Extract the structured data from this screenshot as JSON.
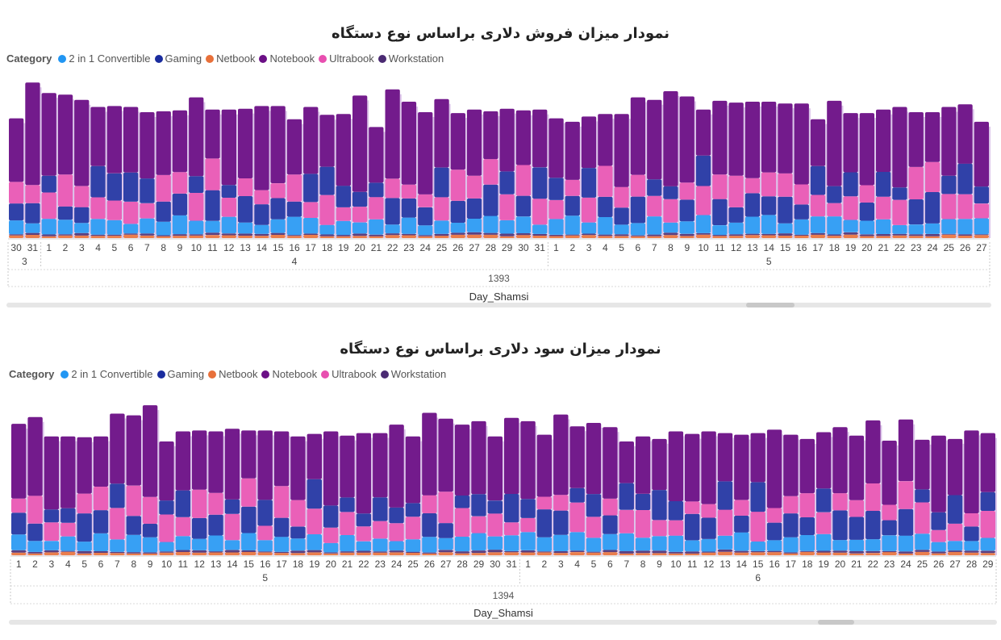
{
  "legend_colors": {
    "2 in 1 Convertible": "#2196f3",
    "Gaming": "#1a2c9e",
    "Netbook": "#e8703a",
    "Notebook": "#6b0f86",
    "Ultrabook": "#e84fb0",
    "Workstation": "#4a2a72"
  },
  "chart_data": [
    {
      "type": "area",
      "subtype": "ribbon",
      "title": "نمودار میزان فروش دلاری براساس نوع دستگاه",
      "legend_title": "Category",
      "series_names": [
        "2 in 1 Convertible",
        "Gaming",
        "Netbook",
        "Notebook",
        "Ultrabook",
        "Workstation"
      ],
      "xlabel": "Day_Shamsi",
      "year_label": "1393",
      "month_labels": [
        "3",
        "4",
        "5"
      ],
      "day_labels": [
        "30",
        "31",
        "1",
        "2",
        "3",
        "4",
        "5",
        "6",
        "7",
        "8",
        "9",
        "10",
        "11",
        "12",
        "13",
        "14",
        "15",
        "16",
        "17",
        "18",
        "19",
        "20",
        "21",
        "22",
        "23",
        "24",
        "25",
        "26",
        "27",
        "28",
        "29",
        "30",
        "31",
        "1",
        "2",
        "3",
        "4",
        "5",
        "6",
        "7",
        "8",
        "9",
        "10",
        "11",
        "12",
        "13",
        "14",
        "15",
        "16",
        "17",
        "18",
        "19",
        "20",
        "21",
        "22",
        "23",
        "24",
        "25",
        "26",
        "27"
      ],
      "month_spans": [
        2,
        31,
        27
      ],
      "totals": [
        137,
        178,
        166,
        164,
        158,
        150,
        151,
        150,
        144,
        145,
        146,
        161,
        147,
        147,
        148,
        151,
        151,
        136,
        150,
        141,
        142,
        163,
        127,
        170,
        156,
        144,
        159,
        143,
        147,
        145,
        148,
        146,
        147,
        137,
        133,
        139,
        142,
        142,
        161,
        158,
        168,
        162,
        147,
        157,
        155,
        156,
        156,
        154,
        154,
        136,
        157,
        143,
        143,
        147,
        150,
        144,
        144,
        150,
        153,
        133
      ],
      "scrollbar": {
        "position": 0.79,
        "thumb_fraction": 0.05
      }
    },
    {
      "type": "area",
      "subtype": "ribbon",
      "title": "نمودار میزان سود دلاری براساس نوع دستگاه",
      "legend_title": "Category",
      "series_names": [
        "2 in 1 Convertible",
        "Gaming",
        "Netbook",
        "Notebook",
        "Ultrabook",
        "Workstation"
      ],
      "xlabel": "Day_Shamsi",
      "year_label": "1394",
      "month_labels": [
        "5",
        "6"
      ],
      "day_labels": [
        "1",
        "2",
        "3",
        "4",
        "5",
        "6",
        "7",
        "8",
        "9",
        "10",
        "11",
        "12",
        "13",
        "14",
        "15",
        "16",
        "17",
        "18",
        "19",
        "20",
        "21",
        "22",
        "23",
        "24",
        "25",
        "26",
        "27",
        "28",
        "29",
        "30",
        "31",
        "1",
        "2",
        "3",
        "4",
        "5",
        "6",
        "7",
        "8",
        "9",
        "10",
        "11",
        "12",
        "13",
        "14",
        "15",
        "16",
        "17",
        "18",
        "19",
        "20",
        "21",
        "22",
        "23",
        "24",
        "25",
        "26",
        "27",
        "28",
        "29"
      ],
      "month_spans": [
        31,
        29
      ],
      "totals": [
        156,
        164,
        141,
        141,
        140,
        141,
        168,
        166,
        178,
        135,
        147,
        148,
        147,
        150,
        148,
        148,
        147,
        141,
        144,
        147,
        142,
        145,
        145,
        155,
        141,
        169,
        162,
        155,
        159,
        141,
        163,
        159,
        143,
        167,
        153,
        157,
        152,
        135,
        141,
        138,
        147,
        144,
        147,
        145,
        143,
        145,
        149,
        143,
        138,
        146,
        152,
        142,
        160,
        136,
        161,
        137,
        142,
        138,
        148,
        145
      ],
      "scrollbar": {
        "position": 0.85,
        "thumb_fraction": 0.04
      }
    }
  ]
}
